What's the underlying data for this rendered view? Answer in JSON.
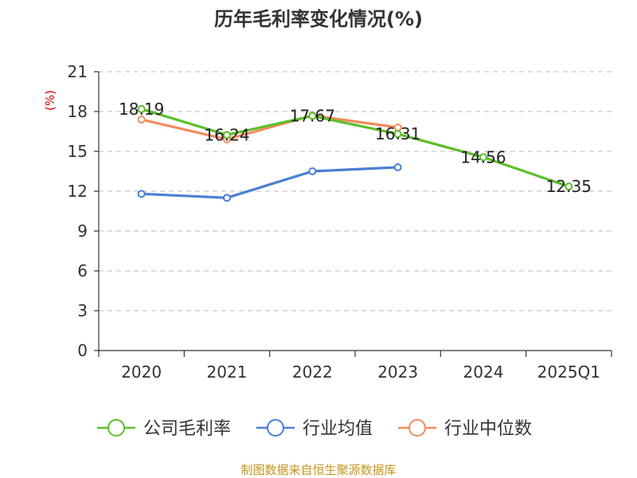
{
  "chart_data": {
    "type": "line",
    "title": "历年毛利率变化情况(%)",
    "ylabel": "(%)",
    "categories": [
      "2020",
      "2021",
      "2022",
      "2023",
      "2024",
      "2025Q1"
    ],
    "yticks": [
      "0",
      "3",
      "6",
      "9",
      "12",
      "15",
      "18",
      "21"
    ],
    "ylim": [
      0,
      21
    ],
    "grid": "horizontal-dashed",
    "legend_position": "bottom",
    "series": [
      {
        "name": "公司毛利率",
        "color": "#5cbf2a",
        "values": [
          18.19,
          16.24,
          17.67,
          16.31,
          14.56,
          12.35
        ],
        "labels": [
          "18.19",
          "16.24",
          "17.67",
          "16.31",
          "14.56",
          "12.35"
        ]
      },
      {
        "name": "行业均值",
        "color": "#4a7fd4",
        "values": [
          11.8,
          11.5,
          13.5,
          13.8,
          null,
          null
        ]
      },
      {
        "name": "行业中位数",
        "color": "#f48b5b",
        "values": [
          17.4,
          15.9,
          17.7,
          16.8,
          null,
          null
        ]
      }
    ]
  },
  "source": "制图数据来自恒生聚源数据库"
}
